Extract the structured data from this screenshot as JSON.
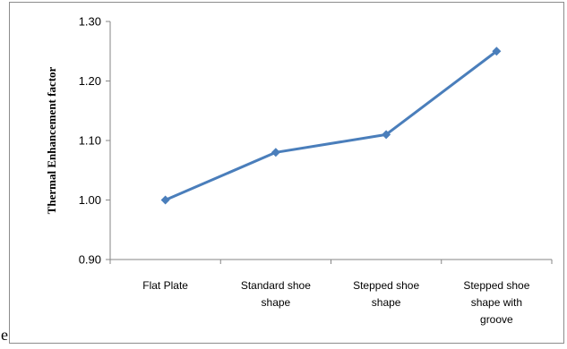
{
  "chart_data": {
    "type": "line",
    "categories": [
      [
        "Flat Plate"
      ],
      [
        "Standard shoe",
        "shape"
      ],
      [
        "Stepped shoe",
        "shape"
      ],
      [
        "Stepped shoe",
        "shape with",
        "groove"
      ]
    ],
    "series": [
      {
        "values": [
          1.0,
          1.08,
          1.11,
          1.25
        ],
        "color": "#4a7ebb"
      }
    ],
    "ylabel": "Thermal Enhancement factor",
    "xlabel": "",
    "title": "",
    "ylim": [
      0.9,
      1.3
    ],
    "yticks": [
      "0.90",
      "1.00",
      "1.10",
      "1.20",
      "1.30"
    ],
    "marker": "diamond",
    "grid": false,
    "legend": "none"
  },
  "stray_text": "e"
}
